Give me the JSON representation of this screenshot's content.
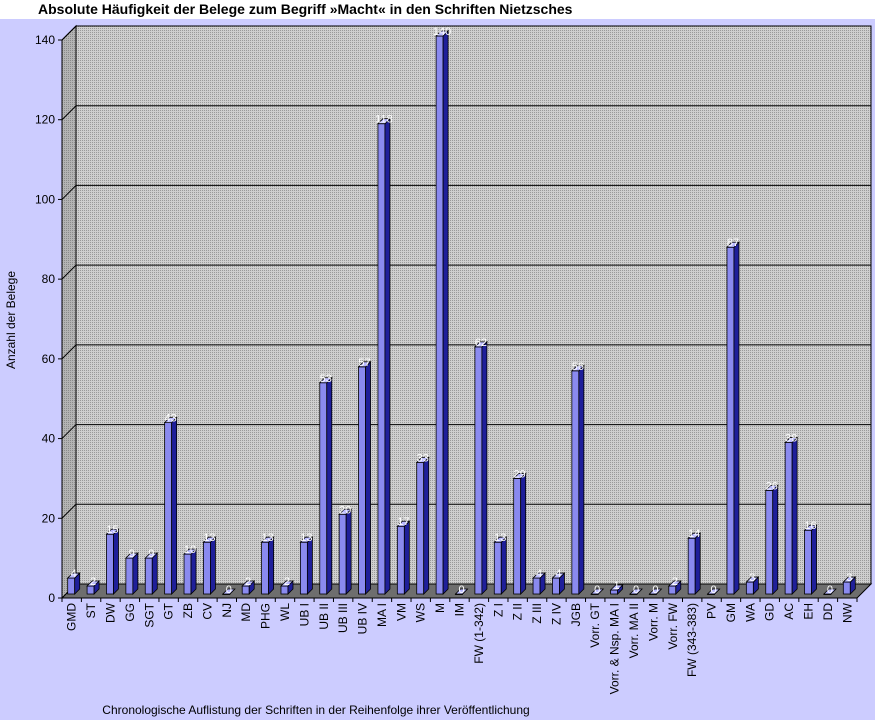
{
  "chart_data": {
    "type": "bar",
    "title": "Absolute Häufigkeit der Belege zum Begriff »Macht« in den Schriften Nietzsches",
    "xlabel": "Chronologische Auflistung der Schriften in der Reihenfolge ihrer Veröffentlichung",
    "ylabel": "Anzahl der Belege",
    "ylim": [
      0,
      140
    ],
    "yticks": [
      "0",
      "20",
      "40",
      "60",
      "80",
      "100",
      "120",
      "140"
    ],
    "grid": true,
    "legend": "none",
    "categories": [
      "GMD",
      "ST",
      "DW",
      "GG",
      "SGT",
      "GT",
      "ZB",
      "CV",
      "NJ",
      "MD",
      "PHG",
      "WL",
      "UB I",
      "UB II",
      "UB III",
      "UB IV",
      "MA I",
      "VM",
      "WS",
      "M",
      "IM",
      "FW (1-342)",
      "Z I",
      "Z II",
      "Z III",
      "Z IV",
      "JGB",
      "Vorr. GT",
      "Vorr. & Nsp. MA I",
      "Vorr. MA II",
      "Vorr. M",
      "Vorr. FW",
      "FW (343-383)",
      "PV",
      "GM",
      "WA",
      "GD",
      "AC",
      "EH",
      "DD",
      "NW"
    ],
    "values": [
      4,
      2,
      15,
      9,
      9,
      43,
      10,
      13,
      0,
      2,
      13,
      2,
      13,
      53,
      20,
      57,
      118,
      17,
      33,
      140,
      0,
      62,
      13,
      29,
      4,
      4,
      56,
      0,
      1,
      0,
      0,
      2,
      14,
      0,
      87,
      3,
      26,
      38,
      16,
      0,
      3
    ],
    "data_labels": [
      "4",
      "2",
      "15",
      "9",
      "9",
      "43",
      "10",
      "13",
      "0",
      "2",
      "13",
      "2",
      "13",
      "53",
      "20",
      "57",
      "118",
      "17",
      "33",
      "140",
      "0",
      "62",
      "13",
      "29",
      "4",
      "4",
      "56",
      "0",
      "1",
      "0",
      "0",
      "2",
      "14",
      "0",
      "87",
      "3",
      "26",
      "38",
      "16",
      "0",
      "3"
    ],
    "colors": {
      "bar_front": "#8a8aef",
      "bar_side": "#1f1f9a",
      "bar_top": "#b9b9ff",
      "plot_back": "#c8c8c8",
      "plot_side": "#a9a9a9",
      "plot_floor": "#6e6e6e",
      "background": "#ccccff"
    }
  }
}
